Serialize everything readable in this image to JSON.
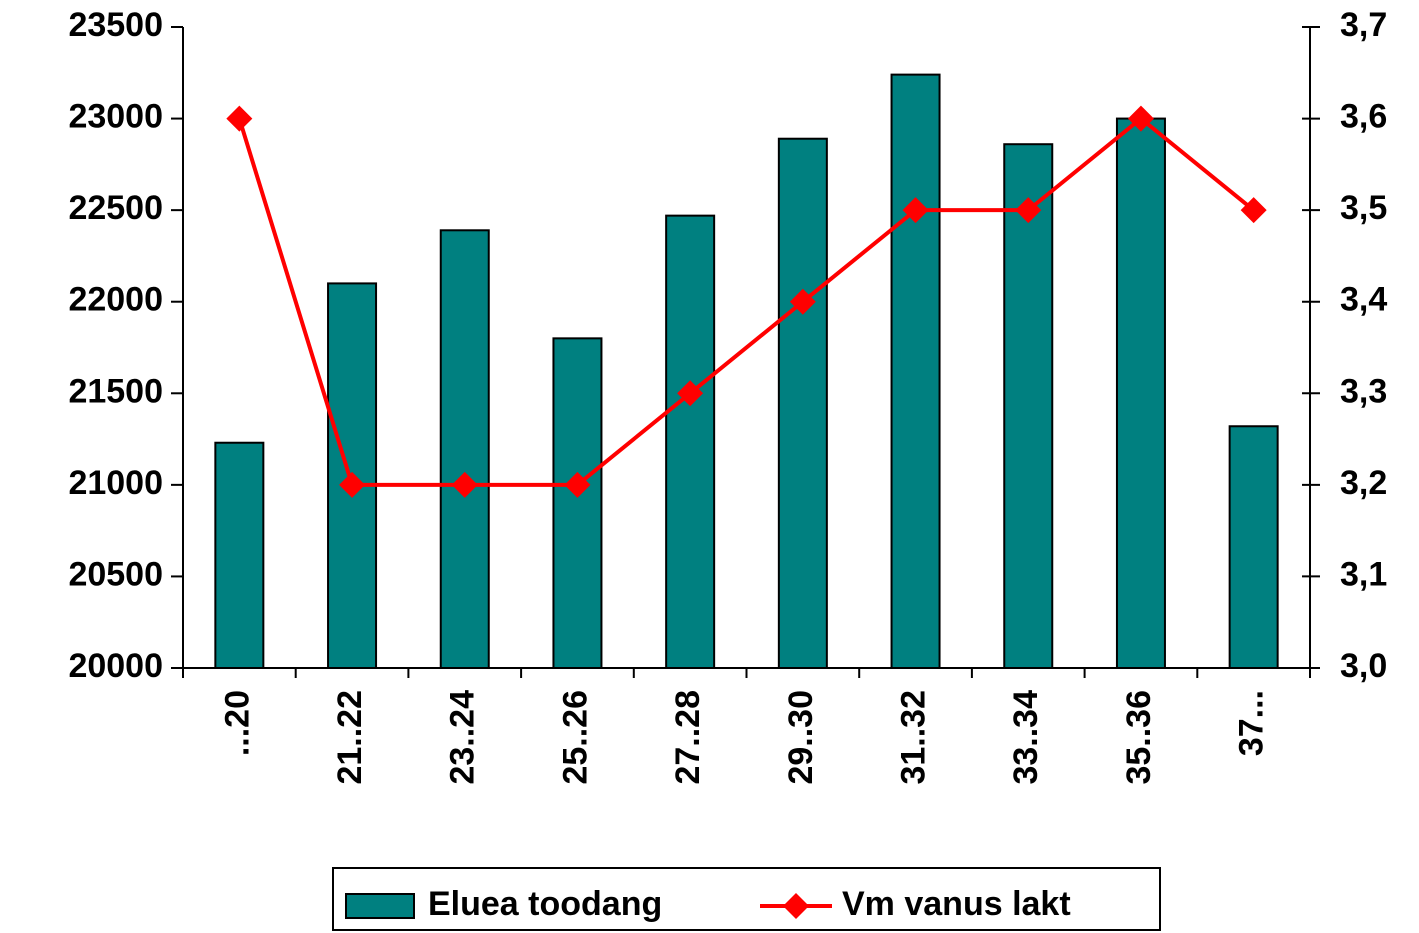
{
  "chart_data": {
    "type": "bar_line",
    "categories": [
      "...20",
      "21..22",
      "23..24",
      "25..26",
      "27..28",
      "29..30",
      "31..32",
      "33..34",
      "35..36",
      "37..."
    ],
    "series": [
      {
        "name": "Eluea toodang",
        "type": "bar",
        "color": "#008080",
        "values": [
          21230,
          22100,
          22390,
          21800,
          22470,
          22890,
          23240,
          22860,
          23000,
          21320
        ]
      },
      {
        "name": "Vm vanus lakt",
        "type": "line",
        "color": "#ff0000",
        "axis": "y2",
        "values": [
          3.6,
          3.2,
          3.2,
          3.2,
          3.3,
          3.4,
          3.5,
          3.5,
          3.6,
          3.5
        ]
      }
    ],
    "ylim": [
      20000,
      23500
    ],
    "yticks": [
      20000,
      20500,
      21000,
      21500,
      22000,
      22500,
      23000,
      23500
    ],
    "y2lim": [
      3.0,
      3.7
    ],
    "y2ticks": [
      {
        "value": 3.0,
        "label": "3,0"
      },
      {
        "value": 3.1,
        "label": "3,1"
      },
      {
        "value": 3.2,
        "label": "3,2"
      },
      {
        "value": 3.3,
        "label": "3,3"
      },
      {
        "value": 3.4,
        "label": "3,4"
      },
      {
        "value": 3.5,
        "label": "3,5"
      },
      {
        "value": 3.6,
        "label": "3,6"
      },
      {
        "value": 3.7,
        "label": "3,7"
      }
    ],
    "legend": "bottom"
  }
}
